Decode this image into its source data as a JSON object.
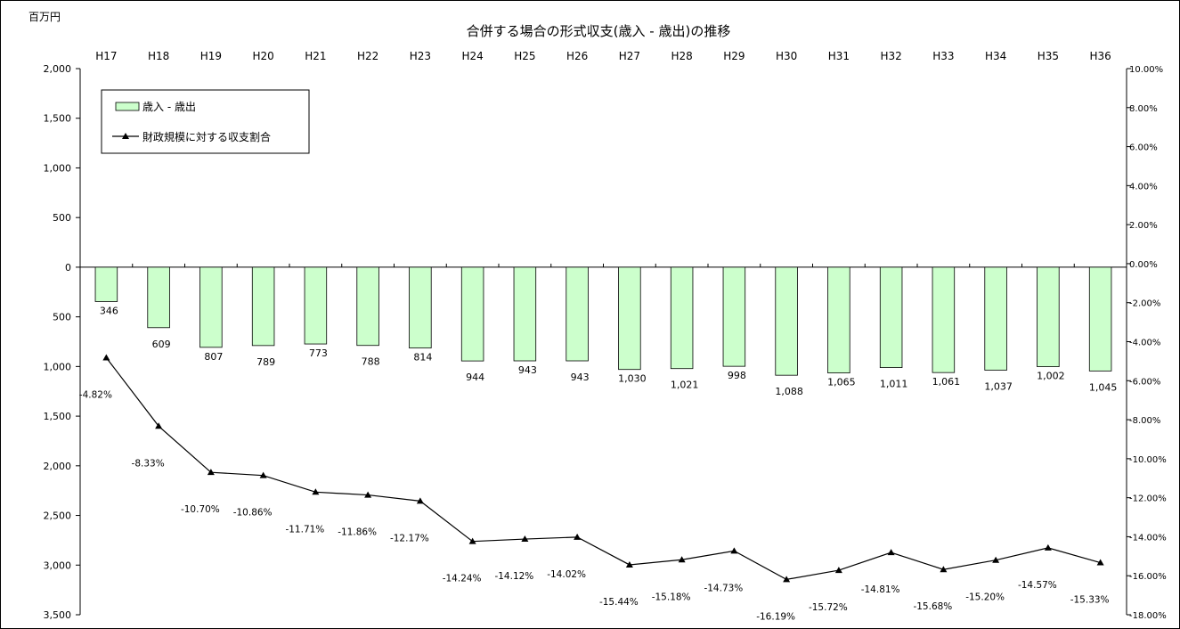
{
  "chart_data": {
    "type": "bar",
    "title": "合併する場合の形式収支(歳入 - 歳出)の推移",
    "unit_label": "百万円",
    "categories": [
      "H17",
      "H18",
      "H19",
      "H20",
      "H21",
      "H22",
      "H23",
      "H24",
      "H25",
      "H26",
      "H27",
      "H28",
      "H29",
      "H30",
      "H31",
      "H32",
      "H33",
      "H34",
      "H35",
      "H36"
    ],
    "series": [
      {
        "name": "歳入 - 歳出",
        "type": "bar",
        "axis": "left",
        "color": "#ccffcc",
        "values": [
          -346,
          -609,
          -807,
          -789,
          -773,
          -788,
          -814,
          -944,
          -943,
          -943,
          -1030,
          -1021,
          -998,
          -1088,
          -1065,
          -1011,
          -1061,
          -1037,
          -1002,
          -1045
        ],
        "labels": [
          "346",
          "609",
          "807",
          "789",
          "773",
          "788",
          "814",
          "944",
          "943",
          "943",
          "1,030",
          "1,021",
          "998",
          "1,088",
          "1,065",
          "1,011",
          "1,061",
          "1,037",
          "1,002",
          "1,045"
        ]
      },
      {
        "name": "財政規模に対する収支割合",
        "type": "line",
        "axis": "right",
        "color": "#000000",
        "values": [
          -4.82,
          -8.33,
          -10.7,
          -10.86,
          -11.71,
          -11.86,
          -12.17,
          -14.24,
          -14.12,
          -14.02,
          -15.44,
          -15.18,
          -14.73,
          -16.19,
          -15.72,
          -14.81,
          -15.68,
          -15.2,
          -14.57,
          -15.33
        ],
        "labels": [
          "-4.82%",
          "-8.33%",
          "-10.70%",
          "-10.86%",
          "-11.71%",
          "-11.86%",
          "-12.17%",
          "-14.24%",
          "-14.12%",
          "-14.02%",
          "-15.44%",
          "-15.18%",
          "-14.73%",
          "-16.19%",
          "-15.72%",
          "-14.81%",
          "-15.68%",
          "-15.20%",
          "-14.57%",
          "-15.33%"
        ]
      }
    ],
    "left_axis": {
      "range": [
        -3500,
        2000
      ],
      "ticks": [
        2000,
        1500,
        1000,
        500,
        0,
        -500,
        -1000,
        -1500,
        -2000,
        -2500,
        -3000,
        -3500
      ],
      "tick_labels": [
        "2,000",
        "1,500",
        "1,000",
        "500",
        "0",
        "500",
        "1,000",
        "1,500",
        "2,000",
        "2,500",
        "3,000",
        "3,500"
      ]
    },
    "right_axis": {
      "range": [
        -18,
        10
      ],
      "ticks": [
        10,
        8,
        6,
        4,
        2,
        0,
        -2,
        -4,
        -6,
        -8,
        -10,
        -12,
        -14,
        -16,
        -18
      ],
      "tick_labels": [
        "10.00%",
        "8.00%",
        "6.00%",
        "4.00%",
        "2.00%",
        "0.00%",
        "-2.00%",
        "-4.00%",
        "-6.00%",
        "-8.00%",
        "-10.00%",
        "-12.00%",
        "-14.00%",
        "-16.00%",
        "-18.00%"
      ]
    },
    "category_axis_position": "top",
    "grid": false,
    "legend_position": "top-left"
  }
}
